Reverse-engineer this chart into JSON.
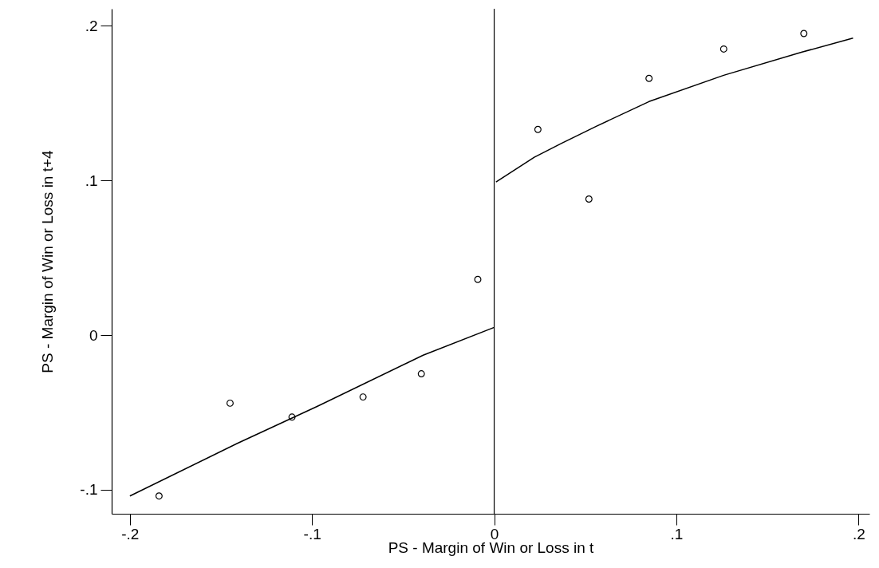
{
  "chart_data": {
    "type": "scatter",
    "xlabel": "PS - Margin of Win or Loss in t",
    "ylabel": "PS - Margin of Win or Loss in t+4",
    "xlim": [
      -0.21,
      0.206
    ],
    "ylim": [
      -0.1155,
      0.211
    ],
    "xticks": [
      {
        "value": -0.2,
        "label": "-.2"
      },
      {
        "value": -0.1,
        "label": "-.1"
      },
      0,
      {
        "value": 0.1,
        "label": ".1"
      },
      {
        "value": 0.2,
        "label": ".2"
      }
    ],
    "yticks": [
      {
        "value": -0.1,
        "label": "-.1"
      },
      0,
      {
        "value": 0.1,
        "label": ".1"
      },
      {
        "value": 0.2,
        "label": ".2"
      }
    ],
    "grid": false,
    "marker": "circle",
    "ref_lines": [
      {
        "axis": "x",
        "value": 0,
        "color": "#000000"
      }
    ],
    "series": [
      {
        "color": "#000000",
        "x": [
          -0.184,
          -0.145,
          -0.111,
          -0.072,
          -0.04,
          -0.009,
          0.024,
          0.052,
          0.085,
          0.126,
          0.17
        ],
        "values": [
          -0.104,
          -0.044,
          -0.053,
          -0.04,
          -0.025,
          0.036,
          0.133,
          0.088,
          0.166,
          0.185,
          0.195
        ]
      },
      {
        "type": "line",
        "color": "#000000",
        "marker": "none",
        "line_style": "solid",
        "x": [
          -0.2,
          -0.141,
          -0.097,
          -0.039,
          0
        ],
        "values": [
          -0.104,
          -0.07,
          -0.046,
          -0.013,
          0.005
        ]
      },
      {
        "type": "line",
        "color": "#000000",
        "marker": "none",
        "line_style": "solid",
        "x": [
          0.001,
          0.022,
          0.037,
          0.056,
          0.085,
          0.126,
          0.169,
          0.197
        ],
        "values": [
          0.099,
          0.115,
          0.124,
          0.135,
          0.151,
          0.168,
          0.183,
          0.192
        ]
      }
    ]
  }
}
